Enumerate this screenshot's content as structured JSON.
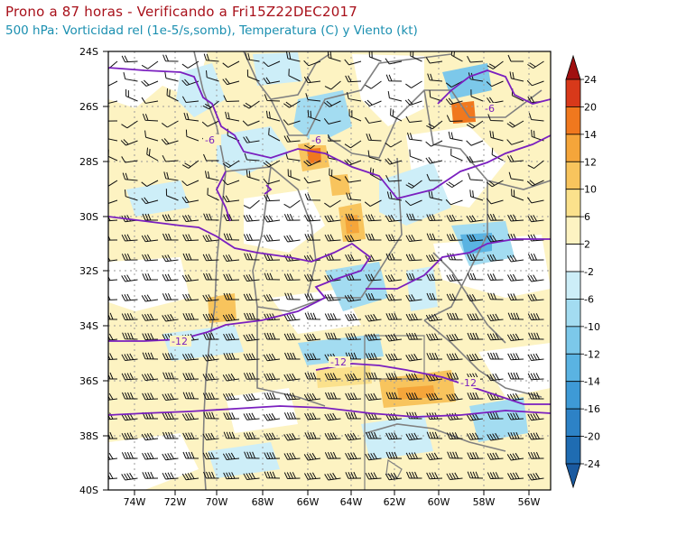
{
  "header": {
    "title": "Prono a 87 horas - Verificando a Fri15Z22DEC2017",
    "subtitle": "500 hPa: Vorticidad rel (1e-5/s,somb), Temperatura (C) y Viento (kt)"
  },
  "map": {
    "lat_labels": [
      "24S",
      "26S",
      "28S",
      "30S",
      "32S",
      "34S",
      "36S",
      "38S",
      "40S"
    ],
    "lon_labels": [
      "74W",
      "72W",
      "70W",
      "68W",
      "66W",
      "64W",
      "62W",
      "60W",
      "58W",
      "56W"
    ],
    "lon_range": [
      -75.5,
      -55.2
    ],
    "lat_range": [
      -40,
      -24
    ],
    "contour_labels": [
      "-6",
      "-6",
      "-6",
      "-12",
      "-12",
      "-12"
    ]
  },
  "colorbar": {
    "ticks": [
      "24",
      "20",
      "14",
      "12",
      "10",
      "6",
      "2",
      "-2",
      "-6",
      "-10",
      "-12",
      "-14",
      "-16",
      "-20",
      "-24"
    ],
    "colors": [
      "#a01010",
      "#d8391a",
      "#f0781e",
      "#f5a53a",
      "#f8c45d",
      "#fbe18c",
      "#fdf3c2",
      "#ffffff",
      "#cdeef8",
      "#a3dcf1",
      "#7cc8ea",
      "#5ab3e2",
      "#3e9ad6",
      "#2d82c6",
      "#1f6cb2",
      "#1a5aa0"
    ]
  },
  "colors": {
    "title": "#a8101a",
    "subtitle": "#1a8fb0",
    "temperature_contour": "#7a1fbf",
    "borders": "#808080"
  }
}
